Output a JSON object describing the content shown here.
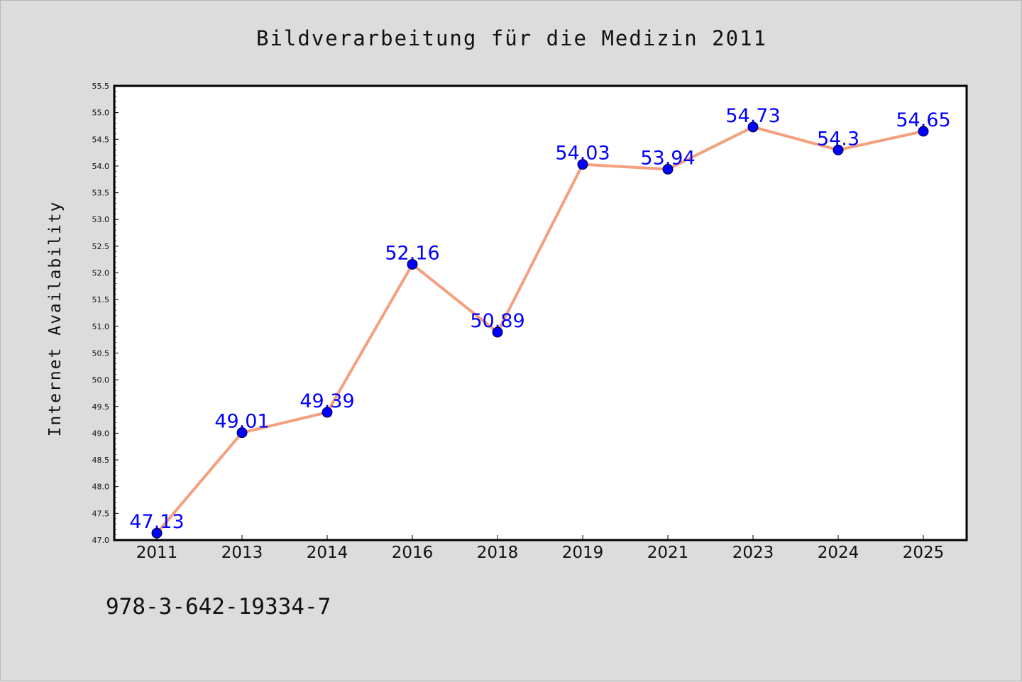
{
  "chart_data": {
    "type": "line",
    "title": "Bildverarbeitung für die Medizin 2011",
    "xlabel": "",
    "ylabel": "Internet Availability",
    "categories": [
      "2011",
      "2013",
      "2014",
      "2016",
      "2018",
      "2019",
      "2021",
      "2023",
      "2024",
      "2025"
    ],
    "series": [
      {
        "values": [
          47.13,
          49.01,
          49.39,
          52.16,
          50.89,
          54.03,
          53.94,
          54.73,
          54.3,
          54.65
        ],
        "labels": [
          "47.13",
          "49.01",
          "49.39",
          "52.16",
          "50.89",
          "54.03",
          "53.94",
          "54.73",
          "54.3",
          "54.65"
        ],
        "line_color": "#f4a07e",
        "marker_color": "#0000ff"
      }
    ],
    "ylim": [
      47.0,
      55.5
    ],
    "yticks": [
      "47.0",
      "47.5",
      "48.0",
      "48.5",
      "49.0",
      "49.5",
      "50.0",
      "50.5",
      "51.0",
      "51.5",
      "52.0",
      "52.5",
      "53.0",
      "53.5",
      "54.0",
      "54.5",
      "55.0",
      "55.5"
    ],
    "grid": false,
    "legend": "none"
  },
  "footer_text": "978-3-642-19334-7",
  "colors": {
    "background": "#dcdcdc",
    "plot_background": "#ffffff",
    "data_label": "#0000ff"
  }
}
